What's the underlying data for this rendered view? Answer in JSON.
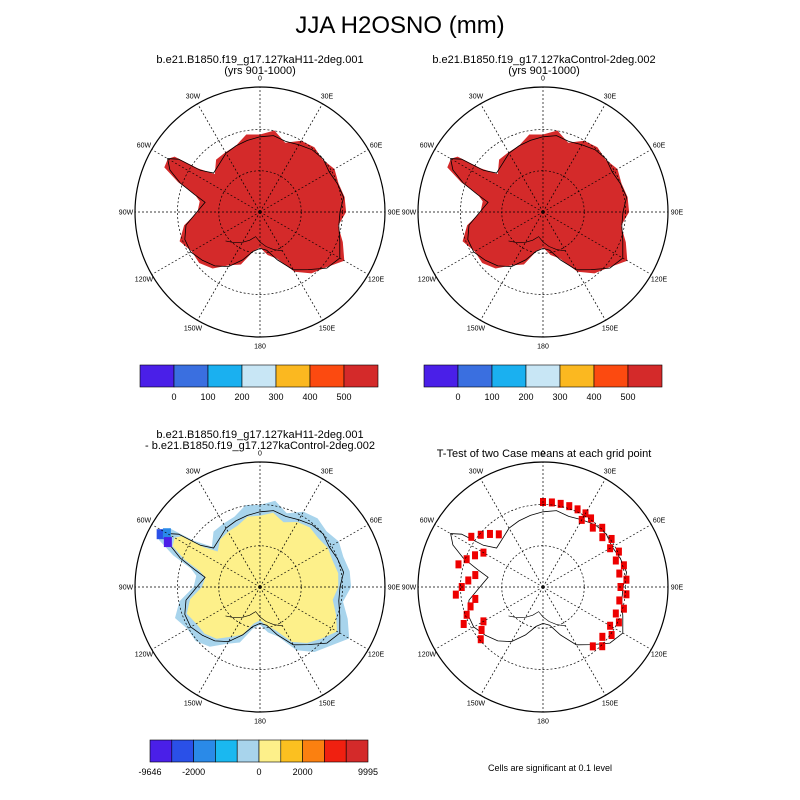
{
  "title": "JJA H2OSNO (mm)",
  "chart_data": [
    {
      "type": "heatmap",
      "projection": "south-polar-stereographic",
      "title_line1": "b.e21.B1850.f19_g17.127kaH11-2deg.001",
      "title_line2": "(yrs 901-1000)",
      "longitude_labels": [
        "0",
        "30E",
        "60E",
        "90E",
        "120E",
        "150E",
        "180",
        "150W",
        "120W",
        "90W",
        "60W",
        "30W"
      ],
      "colorbar": {
        "colors": [
          "#4a1fe8",
          "#3a6fe0",
          "#1ab0f0",
          "#c8e6f5",
          "#fbb820",
          "#fc4a10",
          "#d42a2a"
        ],
        "tick_labels": [
          "0",
          "100",
          "200",
          "300",
          "400",
          "500"
        ]
      },
      "description_value": "Antarctic snow depth saturated above 500 mm over whole continent"
    },
    {
      "type": "heatmap",
      "projection": "south-polar-stereographic",
      "title_line1": "b.e21.B1850.f19_g17.127kaControl-2deg.002",
      "title_line2": "(yrs 901-1000)",
      "longitude_labels": [
        "0",
        "30E",
        "60E",
        "90E",
        "120E",
        "150E",
        "180",
        "150W",
        "120W",
        "90W",
        "60W",
        "30W"
      ],
      "colorbar": {
        "colors": [
          "#4a1fe8",
          "#3a6fe0",
          "#1ab0f0",
          "#c8e6f5",
          "#fbb820",
          "#fc4a10",
          "#d42a2a"
        ],
        "tick_labels": [
          "0",
          "100",
          "200",
          "300",
          "400",
          "500"
        ]
      }
    },
    {
      "type": "heatmap",
      "projection": "south-polar-stereographic",
      "title_line1": "b.e21.B1850.f19_g17.127kaH11-2deg.001",
      "title_line2": "- b.e21.B1850.f19_g17.127kaControl-2deg.002",
      "longitude_labels": [
        "0",
        "30E",
        "60E",
        "90E",
        "120E",
        "150E",
        "180",
        "150W",
        "120W",
        "90W",
        "60W",
        "30W"
      ],
      "colorbar": {
        "colors": [
          "#4a1fe8",
          "#2a50e8",
          "#2a8ae8",
          "#1ab8f0",
          "#a8d4ec",
          "#fdf08a",
          "#fbc020",
          "#fb8010",
          "#f02010",
          "#d42a2a"
        ],
        "tick_labels": [
          "-9646",
          "-2000",
          "0",
          "2000",
          "9995"
        ]
      }
    },
    {
      "type": "heatmap",
      "projection": "south-polar-stereographic",
      "title_line1": "T-Test of two Case means at each grid point",
      "longitude_labels": [
        "0",
        "30E",
        "60E",
        "90E",
        "120E",
        "150E",
        "180",
        "150W",
        "120W",
        "90W",
        "60W",
        "30W"
      ],
      "note": "Cells are significant at 0.1 level",
      "significant_color": "#ee0000"
    }
  ]
}
